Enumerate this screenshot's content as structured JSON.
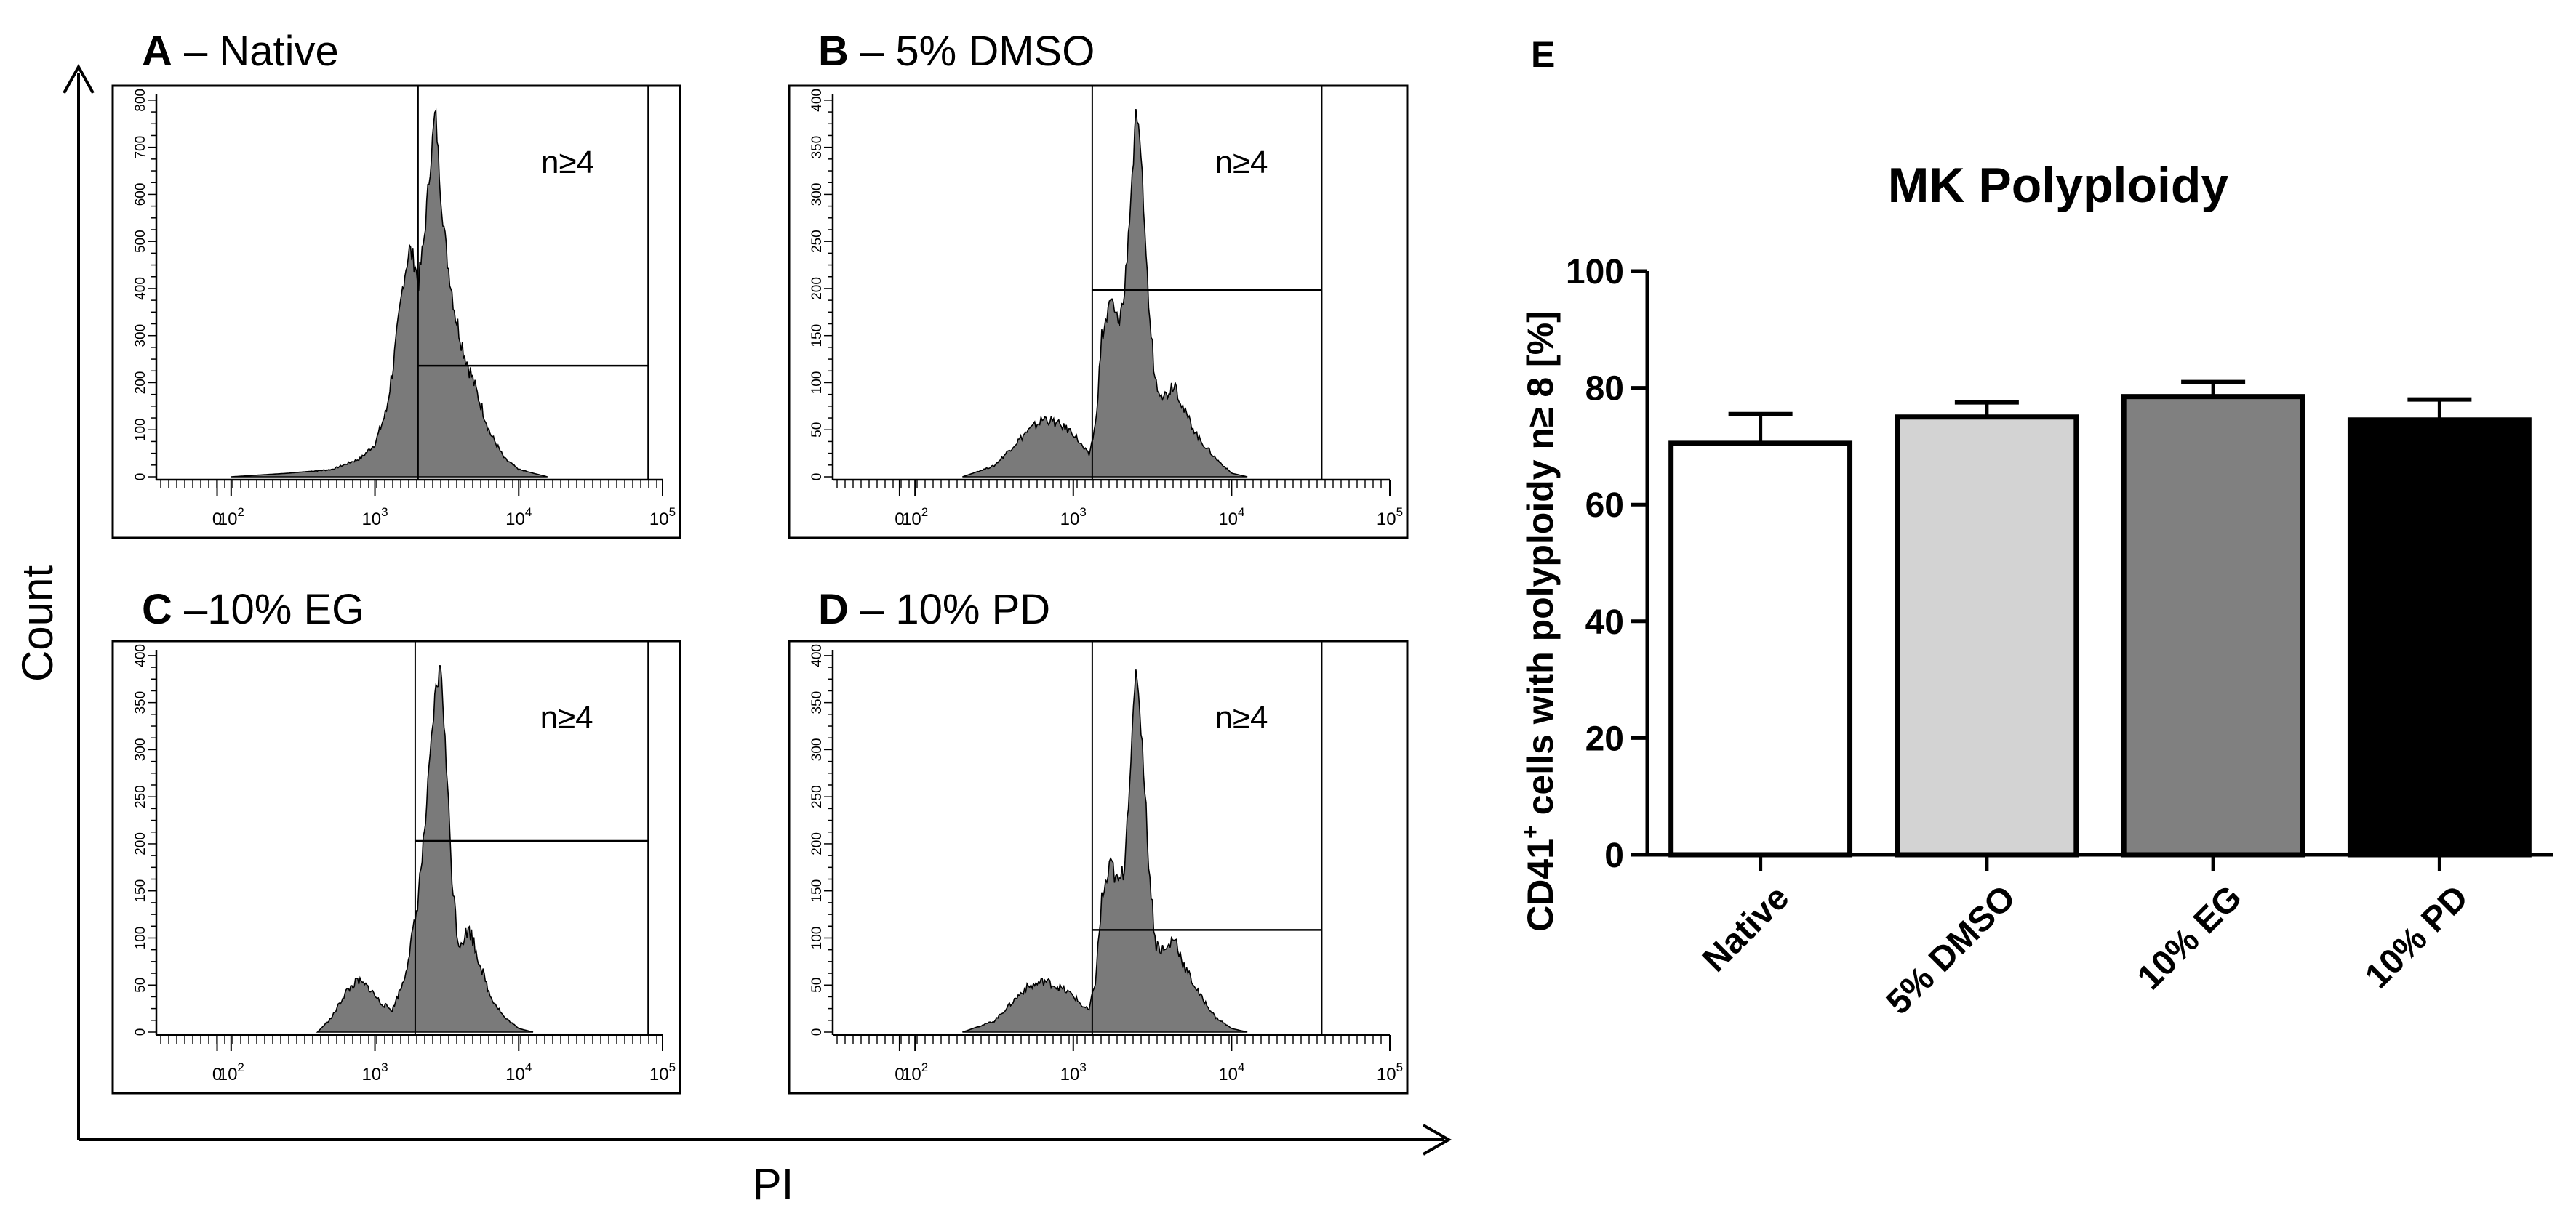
{
  "figure": {
    "axis_y_label": "Count",
    "axis_x_label": "PI",
    "axis_color": "#000000",
    "histogram_fill": "#7a7a7a",
    "frame_color": "#000000"
  },
  "panels": [
    {
      "letter": "A",
      "sep": " – ",
      "title": "Native",
      "gate_label": "n≥4",
      "x_ticks": [
        "0",
        "10",
        "10",
        "10",
        "10"
      ],
      "x_tick_exps": [
        "",
        "2",
        "3",
        "4",
        "5"
      ],
      "y_ticks": [
        "0",
        "100",
        "200",
        "300",
        "400",
        "500",
        "600",
        "700",
        "800"
      ],
      "peak_profile": [
        [
          2.0,
          0
        ],
        [
          2.4,
          1
        ],
        [
          2.7,
          2
        ],
        [
          2.9,
          5
        ],
        [
          3.0,
          9
        ],
        [
          3.08,
          18
        ],
        [
          3.14,
          34
        ],
        [
          3.2,
          54
        ],
        [
          3.24,
          62
        ],
        [
          3.28,
          58
        ],
        [
          3.3,
          52
        ],
        [
          3.34,
          64
        ],
        [
          3.38,
          83
        ],
        [
          3.42,
          100
        ],
        [
          3.46,
          76
        ],
        [
          3.5,
          60
        ],
        [
          3.56,
          44
        ],
        [
          3.62,
          34
        ],
        [
          3.7,
          24
        ],
        [
          3.8,
          12
        ],
        [
          3.9,
          5
        ],
        [
          4.0,
          2
        ],
        [
          4.2,
          0
        ]
      ],
      "peak_y_max": 860,
      "gate_min": 3.3,
      "gate_max": 4.9,
      "gate_height": 250
    },
    {
      "letter": "B",
      "sep": " – ",
      "title": "5% DMSO",
      "gate_label": "n≥4",
      "x_ticks": [
        "0",
        "10",
        "10",
        "10",
        "10"
      ],
      "x_tick_exps": [
        "",
        "2",
        "3",
        "4",
        "5"
      ],
      "y_ticks": [
        "0",
        "50",
        "100",
        "150",
        "200",
        "250",
        "300",
        "350",
        "400"
      ],
      "peak_profile": [
        [
          2.3,
          0
        ],
        [
          2.5,
          3
        ],
        [
          2.7,
          12
        ],
        [
          2.82,
          16
        ],
        [
          2.92,
          14
        ],
        [
          3.0,
          12
        ],
        [
          3.06,
          8
        ],
        [
          3.1,
          6
        ],
        [
          3.14,
          14
        ],
        [
          3.18,
          38
        ],
        [
          3.24,
          48
        ],
        [
          3.28,
          42
        ],
        [
          3.32,
          48
        ],
        [
          3.36,
          74
        ],
        [
          3.4,
          100
        ],
        [
          3.44,
          78
        ],
        [
          3.48,
          44
        ],
        [
          3.52,
          26
        ],
        [
          3.58,
          22
        ],
        [
          3.64,
          26
        ],
        [
          3.7,
          18
        ],
        [
          3.8,
          10
        ],
        [
          3.9,
          5
        ],
        [
          4.0,
          1
        ],
        [
          4.1,
          0
        ]
      ],
      "peak_y_max": 430,
      "gate_min": 3.12,
      "gate_max": 4.57,
      "gate_height": 210
    },
    {
      "letter": "C",
      "sep": " –",
      "title": "10% EG",
      "gate_label": "n≥4",
      "x_ticks": [
        "0",
        "10",
        "10",
        "10",
        "10"
      ],
      "x_tick_exps": [
        "",
        "2",
        "3",
        "4",
        "5"
      ],
      "y_ticks": [
        "0",
        "50",
        "100",
        "150",
        "200",
        "250",
        "300",
        "350",
        "400"
      ],
      "peak_profile": [
        [
          2.6,
          0
        ],
        [
          2.7,
          4
        ],
        [
          2.8,
          11
        ],
        [
          2.88,
          14
        ],
        [
          2.96,
          12
        ],
        [
          3.04,
          8
        ],
        [
          3.12,
          6
        ],
        [
          3.2,
          14
        ],
        [
          3.28,
          30
        ],
        [
          3.34,
          52
        ],
        [
          3.38,
          72
        ],
        [
          3.42,
          92
        ],
        [
          3.46,
          100
        ],
        [
          3.5,
          70
        ],
        [
          3.54,
          40
        ],
        [
          3.58,
          24
        ],
        [
          3.62,
          26
        ],
        [
          3.66,
          28
        ],
        [
          3.72,
          20
        ],
        [
          3.8,
          10
        ],
        [
          3.9,
          4
        ],
        [
          4.0,
          1
        ],
        [
          4.1,
          0
        ]
      ],
      "peak_y_max": 420,
      "gate_min": 3.28,
      "gate_max": 4.9,
      "gate_height": 210
    },
    {
      "letter": "D",
      "sep": " – ",
      "title": "10% PD",
      "gate_label": "n≥4",
      "x_ticks": [
        "0",
        "10",
        "10",
        "10",
        "10"
      ],
      "x_tick_exps": [
        "",
        "2",
        "3",
        "4",
        "5"
      ],
      "y_ticks": [
        "0",
        "50",
        "100",
        "150",
        "200",
        "250",
        "300",
        "350",
        "400"
      ],
      "peak_profile": [
        [
          2.3,
          0
        ],
        [
          2.5,
          3
        ],
        [
          2.7,
          12
        ],
        [
          2.82,
          14
        ],
        [
          2.92,
          12
        ],
        [
          3.0,
          10
        ],
        [
          3.06,
          7
        ],
        [
          3.1,
          6
        ],
        [
          3.14,
          14
        ],
        [
          3.18,
          36
        ],
        [
          3.24,
          46
        ],
        [
          3.28,
          40
        ],
        [
          3.32,
          44
        ],
        [
          3.36,
          72
        ],
        [
          3.4,
          100
        ],
        [
          3.44,
          76
        ],
        [
          3.48,
          44
        ],
        [
          3.52,
          24
        ],
        [
          3.58,
          22
        ],
        [
          3.64,
          26
        ],
        [
          3.7,
          18
        ],
        [
          3.8,
          10
        ],
        [
          3.9,
          4
        ],
        [
          4.0,
          1
        ],
        [
          4.1,
          0
        ]
      ],
      "peak_y_max": 430,
      "gate_min": 3.12,
      "gate_max": 4.57,
      "gate_height": 115
    }
  ],
  "chart_data": {
    "type": "bar",
    "panel_letter": "E",
    "title": "MK Polyploidy",
    "ylabel_main": "CD41",
    "ylabel_sup": "+",
    "ylabel_rest": " cells with polyploidy n≥ 8 [%]",
    "xlabel": "",
    "categories": [
      "Native",
      "5% DMSO",
      "10% EG",
      "10% PD"
    ],
    "values": [
      70.5,
      75,
      78.5,
      74.5
    ],
    "errors": [
      5,
      2.5,
      2.5,
      3.5
    ],
    "colors": [
      "#ffffff",
      "#d3d3d3",
      "#808080",
      "#000000"
    ],
    "ylim": [
      0,
      100
    ],
    "yticks": [
      0,
      20,
      40,
      60,
      80,
      100
    ]
  }
}
